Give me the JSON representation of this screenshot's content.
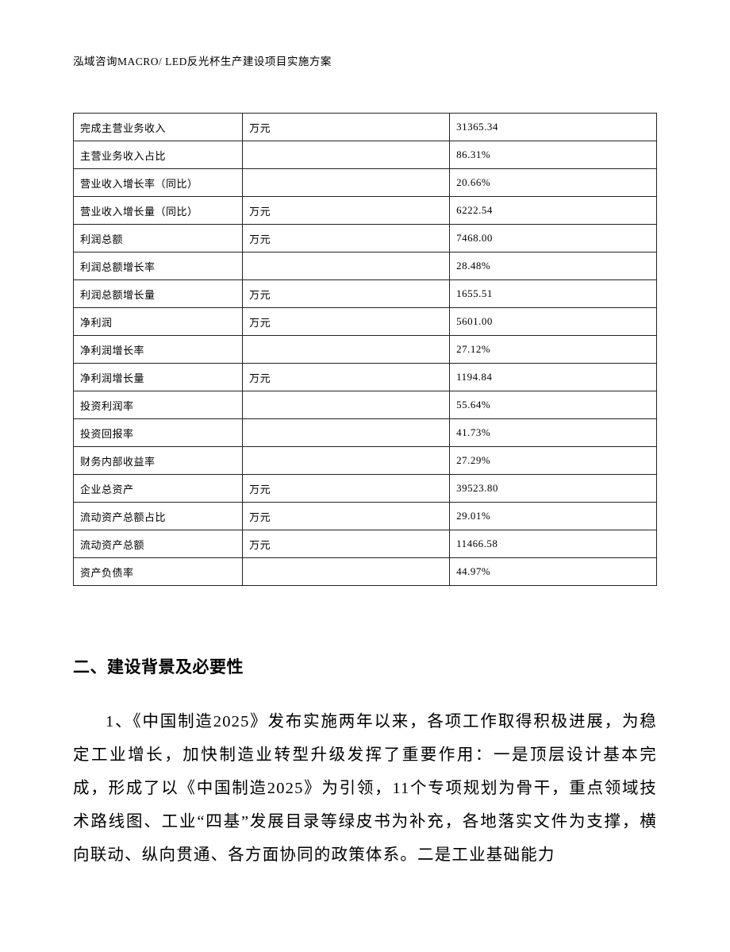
{
  "header": "泓域咨询MACRO/ LED反光杯生产建设项目实施方案",
  "table": {
    "columns": [
      "label",
      "unit",
      "value"
    ],
    "col_widths": [
      "29%",
      "35.5%",
      "35.5%"
    ],
    "border_color": "#222222",
    "font_size": 13,
    "rows": [
      [
        "完成主营业务收入",
        "万元",
        "31365.34"
      ],
      [
        "主营业务收入占比",
        "",
        "86.31%"
      ],
      [
        "营业收入增长率（同比）",
        "",
        "20.66%"
      ],
      [
        "营业收入增长量（同比）",
        "万元",
        "6222.54"
      ],
      [
        "利润总额",
        "万元",
        "7468.00"
      ],
      [
        "利润总额增长率",
        "",
        "28.48%"
      ],
      [
        "利润总额增长量",
        "万元",
        "1655.51"
      ],
      [
        "净利润",
        "万元",
        "5601.00"
      ],
      [
        "净利润增长率",
        "",
        "27.12%"
      ],
      [
        "净利润增长量",
        "万元",
        "1194.84"
      ],
      [
        "投资利润率",
        "",
        "55.64%"
      ],
      [
        "投资回报率",
        "",
        "41.73%"
      ],
      [
        "财务内部收益率",
        "",
        "27.29%"
      ],
      [
        "企业总资产",
        "万元",
        "39523.80"
      ],
      [
        "流动资产总额占比",
        "万元",
        "29.01%"
      ],
      [
        "流动资产总额",
        "万元",
        "11466.58"
      ],
      [
        "资产负债率",
        "",
        "44.97%"
      ]
    ]
  },
  "section": {
    "heading": "二、建设背景及必要性",
    "heading_font": "SimHei",
    "heading_fontsize": 21,
    "paragraph": "1、《中国制造2025》发布实施两年以来，各项工作取得积极进展，为稳定工业增长，加快制造业转型升级发挥了重要作用：一是顶层设计基本完成，形成了以《中国制造2025》为引领，11个专项规划为骨干，重点领域技术路线图、工业“四基”发展目录等绿皮书为补充，各地落实文件为支撑，横向联动、纵向贯通、各方面协同的政策体系。二是工业基础能力",
    "body_font": "FangSong",
    "body_fontsize": 20.5,
    "line_height": 2.05
  },
  "colors": {
    "background": "#ffffff",
    "text": "#000000",
    "border": "#222222"
  }
}
